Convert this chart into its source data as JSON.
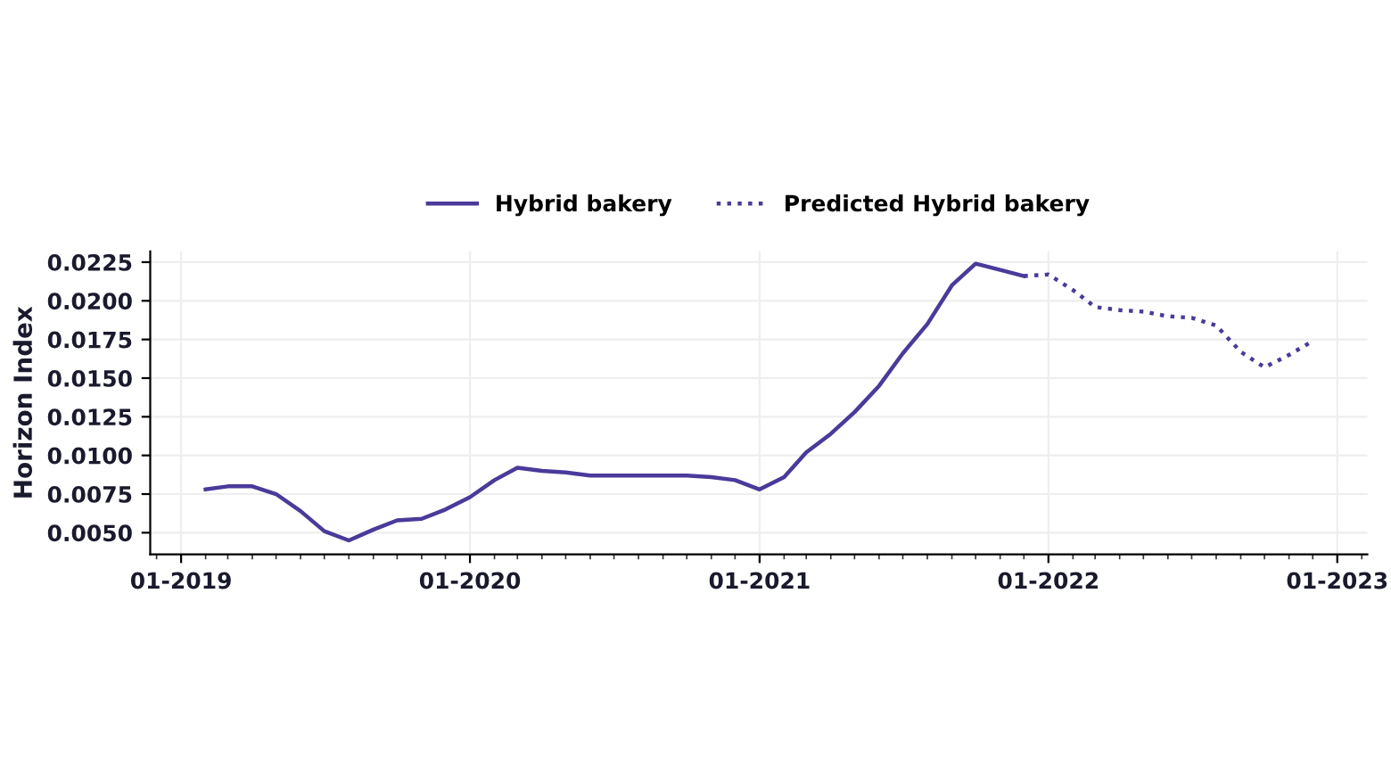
{
  "chart_data": {
    "type": "line",
    "ylabel": "Horizon Index",
    "series": [
      {
        "name": "Hybrid bakery",
        "color": "#4b3a9a",
        "line_style": "solid",
        "x": [
          "2019-02",
          "2019-03",
          "2019-04",
          "2019-05",
          "2019-06",
          "2019-07",
          "2019-08",
          "2019-09",
          "2019-10",
          "2019-11",
          "2019-12",
          "2020-01",
          "2020-02",
          "2020-03",
          "2020-04",
          "2020-05",
          "2020-06",
          "2020-07",
          "2020-08",
          "2020-09",
          "2020-10",
          "2020-11",
          "2020-12",
          "2021-01",
          "2021-02",
          "2021-03",
          "2021-04",
          "2021-05",
          "2021-06",
          "2021-07",
          "2021-08",
          "2021-09",
          "2021-10",
          "2021-11",
          "2021-12"
        ],
        "values": [
          0.0078,
          0.008,
          0.008,
          0.0075,
          0.0064,
          0.0051,
          0.0045,
          0.0052,
          0.0058,
          0.0059,
          0.0065,
          0.0073,
          0.0084,
          0.0092,
          0.009,
          0.0089,
          0.0087,
          0.0087,
          0.0087,
          0.0087,
          0.0087,
          0.0086,
          0.0084,
          0.0078,
          0.0086,
          0.0102,
          0.0114,
          0.0128,
          0.0145,
          0.0166,
          0.0185,
          0.021,
          0.0224,
          0.022,
          0.0216
        ]
      },
      {
        "name": "Predicted Hybrid bakery",
        "color": "#4b3a9a",
        "line_style": "dotted",
        "x": [
          "2021-12",
          "2022-01",
          "2022-02",
          "2022-03",
          "2022-04",
          "2022-05",
          "2022-06",
          "2022-07",
          "2022-08",
          "2022-09",
          "2022-10",
          "2022-11",
          "2022-12"
        ],
        "values": [
          0.0216,
          0.0217,
          0.0207,
          0.0196,
          0.0194,
          0.0193,
          0.019,
          0.0189,
          0.0184,
          0.0167,
          0.0157,
          0.0165,
          0.0174
        ]
      }
    ],
    "xlim": [
      "2018-11-23",
      "2023-02-08"
    ],
    "xticks": [
      {
        "value": "2019-01",
        "label": "01-2019"
      },
      {
        "value": "2020-01",
        "label": "01-2020"
      },
      {
        "value": "2021-01",
        "label": "01-2021"
      },
      {
        "value": "2022-01",
        "label": "01-2022"
      },
      {
        "value": "2023-01",
        "label": "01-2023"
      }
    ],
    "ylim": [
      0.0036,
      0.0232
    ],
    "yticks": [
      {
        "value": 0.005,
        "label": "0.0050"
      },
      {
        "value": 0.0075,
        "label": "0.0075"
      },
      {
        "value": 0.01,
        "label": "0.0100"
      },
      {
        "value": 0.0125,
        "label": "0.0125"
      },
      {
        "value": 0.015,
        "label": "0.0150"
      },
      {
        "value": 0.0175,
        "label": "0.0175"
      },
      {
        "value": 0.02,
        "label": "0.0200"
      },
      {
        "value": 0.0225,
        "label": "0.0225"
      }
    ],
    "grid": true,
    "legend": "top",
    "marker": "none"
  }
}
